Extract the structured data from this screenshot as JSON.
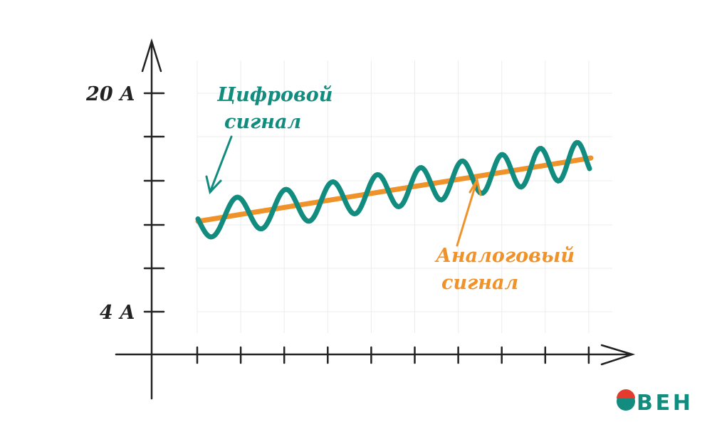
{
  "axis": {
    "top_label": "20 А",
    "bottom_label": "4 А"
  },
  "digital": {
    "label_line1": "Цифровой",
    "label_line2": "сигнал"
  },
  "analog": {
    "label_line1": "Аналоговый",
    "label_line2": "сигнал"
  },
  "logo": "ВЕН"
}
